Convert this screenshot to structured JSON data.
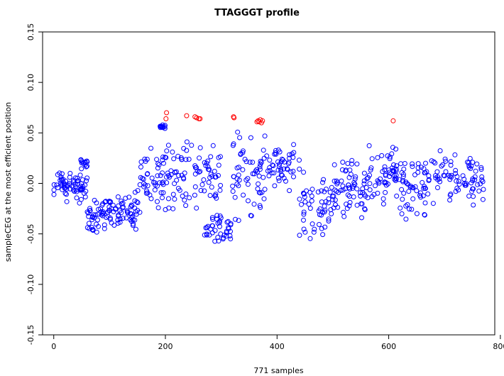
{
  "chart_data": {
    "type": "scatter",
    "title": "TTAGGGT profile",
    "xlabel": "771 samples",
    "ylabel": "sampleCEG at the most efficient position",
    "xlim": [
      -20,
      790
    ],
    "ylim": [
      -0.15,
      0.15
    ],
    "x_ticks": [
      0,
      200,
      400,
      600,
      800
    ],
    "y_ticks": [
      -0.15,
      -0.1,
      -0.05,
      0.0,
      0.05,
      0.1,
      0.15
    ],
    "x_tick_labels": [
      "0",
      "200",
      "400",
      "600",
      "800"
    ],
    "y_tick_labels": [
      "-0.15",
      "-0.10",
      "-0.05",
      "0.00",
      "0.05",
      "0.10",
      "0.15"
    ],
    "n_samples": 771,
    "grid": false,
    "marker": "open-circle",
    "colors": {
      "normal": "#0000ff",
      "highlight": "#ff0000"
    },
    "highlighted_points": [
      {
        "x": 202,
        "y": 0.07
      },
      {
        "x": 201,
        "y": 0.064
      },
      {
        "x": 238,
        "y": 0.067
      },
      {
        "x": 253,
        "y": 0.066
      },
      {
        "x": 256,
        "y": 0.065
      },
      {
        "x": 260,
        "y": 0.064
      },
      {
        "x": 262,
        "y": 0.064
      },
      {
        "x": 322,
        "y": 0.066
      },
      {
        "x": 323,
        "y": 0.065
      },
      {
        "x": 364,
        "y": 0.061
      },
      {
        "x": 366,
        "y": 0.062
      },
      {
        "x": 368,
        "y": 0.061
      },
      {
        "x": 370,
        "y": 0.063
      },
      {
        "x": 372,
        "y": 0.06
      },
      {
        "x": 374,
        "y": 0.062
      },
      {
        "x": 608,
        "y": 0.062
      }
    ],
    "segments": [
      {
        "x_start": 0,
        "x_end": 60,
        "y_center": -0.002,
        "spread": 0.016,
        "count": 70
      },
      {
        "x_start": 44,
        "x_end": 60,
        "y_center": 0.02,
        "spread": 0.004,
        "count": 12
      },
      {
        "x_start": 60,
        "x_end": 100,
        "y_center": -0.03,
        "spread": 0.016,
        "count": 50
      },
      {
        "x_start": 100,
        "x_end": 150,
        "y_center": -0.028,
        "spread": 0.016,
        "count": 55
      },
      {
        "x_start": 150,
        "x_end": 200,
        "y_center": 0.0,
        "spread": 0.028,
        "count": 50
      },
      {
        "x_start": 190,
        "x_end": 200,
        "y_center": 0.057,
        "spread": 0.003,
        "count": 12
      },
      {
        "x_start": 200,
        "x_end": 250,
        "y_center": 0.01,
        "spread": 0.03,
        "count": 45
      },
      {
        "x_start": 250,
        "x_end": 300,
        "y_center": 0.005,
        "spread": 0.03,
        "count": 45
      },
      {
        "x_start": 270,
        "x_end": 320,
        "y_center": -0.045,
        "spread": 0.012,
        "count": 40
      },
      {
        "x_start": 320,
        "x_end": 380,
        "y_center": 0.01,
        "spread": 0.04,
        "count": 60
      },
      {
        "x_start": 380,
        "x_end": 440,
        "y_center": 0.015,
        "spread": 0.02,
        "count": 50
      },
      {
        "x_start": 440,
        "x_end": 500,
        "y_center": -0.02,
        "spread": 0.03,
        "count": 55
      },
      {
        "x_start": 500,
        "x_end": 560,
        "y_center": -0.005,
        "spread": 0.025,
        "count": 65
      },
      {
        "x_start": 560,
        "x_end": 620,
        "y_center": 0.01,
        "spread": 0.025,
        "count": 60
      },
      {
        "x_start": 620,
        "x_end": 680,
        "y_center": -0.005,
        "spread": 0.025,
        "count": 60
      },
      {
        "x_start": 680,
        "x_end": 770,
        "y_center": 0.005,
        "spread": 0.022,
        "count": 75
      }
    ]
  }
}
